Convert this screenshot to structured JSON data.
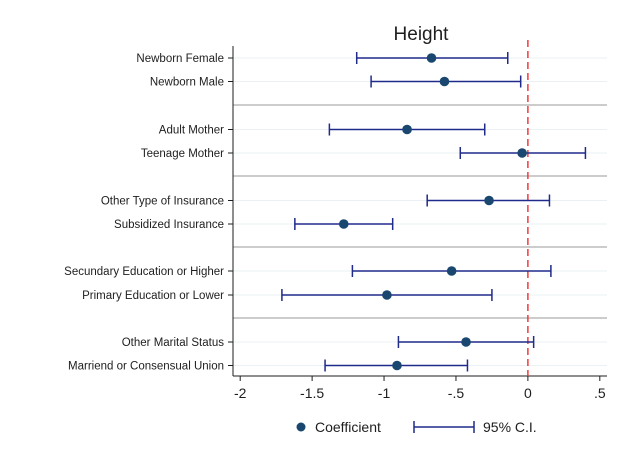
{
  "chart_data": {
    "type": "scatter",
    "subtype": "coefficient-plot",
    "title": "Height",
    "xlabel": "",
    "ylabel": "",
    "xlim": [
      -2.05,
      0.55
    ],
    "xticks": [
      -2,
      -1.5,
      -1,
      -0.5,
      0,
      0.5
    ],
    "xtick_labels": [
      "-2",
      "-1.5",
      "-1",
      "-.5",
      "0",
      ".5"
    ],
    "reference_line": {
      "x": 0,
      "color": "#f0393c",
      "style": "dashed"
    },
    "grid": true,
    "legend_position": "bottom",
    "groups": [
      {
        "items": [
          {
            "label": "Newborn Female",
            "coef": -0.67,
            "ci": [
              -1.19,
              -0.14
            ]
          },
          {
            "label": "Newborn Male",
            "coef": -0.58,
            "ci": [
              -1.09,
              -0.05
            ]
          }
        ]
      },
      {
        "items": [
          {
            "label": "Adult Mother",
            "coef": -0.84,
            "ci": [
              -1.38,
              -0.3
            ]
          },
          {
            "label": "Teenage Mother",
            "coef": -0.04,
            "ci": [
              -0.47,
              0.4
            ]
          }
        ]
      },
      {
        "items": [
          {
            "label": "Other Type of Insurance",
            "coef": -0.27,
            "ci": [
              -0.7,
              0.15
            ]
          },
          {
            "label": "Subsidized Insurance",
            "coef": -1.28,
            "ci": [
              -1.62,
              -0.94
            ]
          }
        ]
      },
      {
        "items": [
          {
            "label": "Secundary Education or Higher",
            "coef": -0.53,
            "ci": [
              -1.22,
              0.16
            ]
          },
          {
            "label": "Primary Education or Lower",
            "coef": -0.98,
            "ci": [
              -1.71,
              -0.25
            ]
          }
        ]
      },
      {
        "items": [
          {
            "label": "Other Marital Status",
            "coef": -0.43,
            "ci": [
              -0.9,
              0.04
            ]
          },
          {
            "label": "Marriend or Consensual Union",
            "coef": -0.91,
            "ci": [
              -1.41,
              -0.42
            ]
          }
        ]
      }
    ],
    "legend": {
      "coef_label": "Coefficient",
      "ci_label": "95% C.I."
    },
    "colors": {
      "marker": "#1a476f",
      "ci": "#1f2a8a",
      "refline": "#f0393c",
      "separator": "#9a9a9a",
      "grid": "#eaf0f3"
    }
  }
}
